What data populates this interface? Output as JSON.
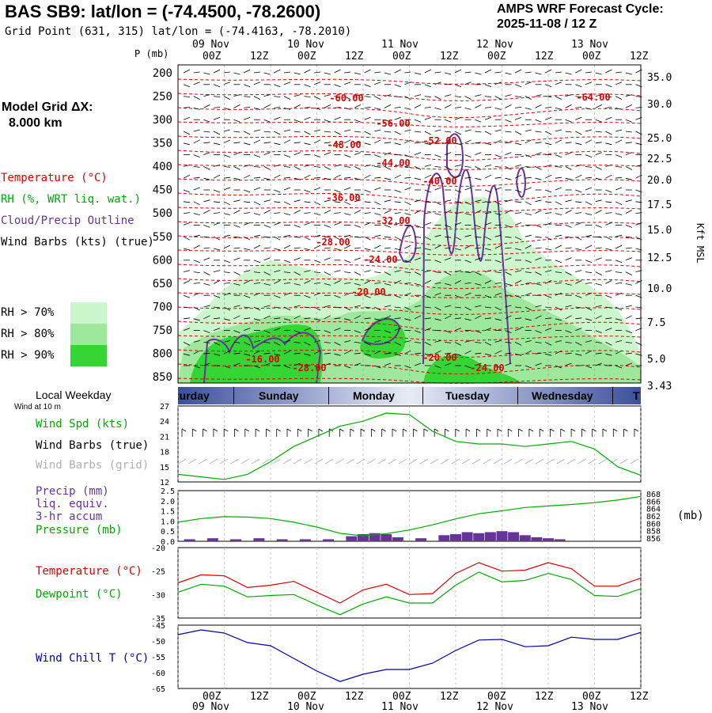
{
  "header": {
    "station_title": "BAS SB9:  lat/lon = (-74.4500, -78.2600)",
    "grid_point": "Grid Point (631, 315) lat/lon = (-74.4163, -78.2010)",
    "cycle_label": "AMPS WRF Forecast Cycle:",
    "cycle_value": "2025-11-08 / 12  Z"
  },
  "left_panel": {
    "model_grid_label": "Model Grid ΔX:",
    "model_grid_value": "8.000 km",
    "legend_temperature": "Temperature (°C)",
    "legend_rh": "RH (%, WRT liq. wat.)",
    "legend_cloud": "Cloud/Precip Outline",
    "legend_wind": "Wind Barbs (kts) (true)",
    "rh_levels": [
      {
        "label": "RH > 70%",
        "color": "#ccf7cc"
      },
      {
        "label": "RH > 80%",
        "color": "#9ee89e"
      },
      {
        "label": "RH > 90%",
        "color": "#33d633"
      }
    ],
    "local_weekday": "Local Weekday",
    "wind_at": "Wind at 10 m",
    "wind_spd_label": "Wind Spd (kts)",
    "wind_barbs_true": "Wind Barbs (true)",
    "wind_barbs_grid": "Wind Barbs (grid)",
    "precip_label_1": "Precip (mm)",
    "precip_label_2": "liq. equiv.",
    "precip_label_3": "3-hr accum",
    "pressure_label": "Pressure (mb)",
    "temp_label": "Temperature (°C)",
    "dewpoint_label": "Dewpoint (°C)",
    "windchill_label": "Wind Chill T (°C)"
  },
  "colors": {
    "temperature": "#dd0000",
    "rh_label": "#00aa00",
    "cloud": "#663399",
    "wind_spd": "#00aa00",
    "grid_barbs": "#b0b0b0",
    "precip": "#663399",
    "pressure": "#00aa00",
    "dewpoint": "#00aa00",
    "windchill": "#0000aa"
  },
  "time_axis": {
    "ticks": [
      "00Z",
      "12Z",
      "00Z",
      "12Z",
      "00Z",
      "12Z",
      "00Z",
      "12Z",
      "00Z",
      "12Z"
    ],
    "dates": [
      "09 Nov",
      "10 Nov",
      "11 Nov",
      "12 Nov",
      "13 Nov"
    ],
    "weekdays": [
      "turday",
      "Sunday",
      "Monday",
      "Tuesday",
      "Wednesday",
      "T"
    ]
  },
  "chart_data": [
    {
      "type": "heatmap",
      "name": "vertical cross-section",
      "y_label": "P (mb)",
      "right_label": "Kft MSL",
      "pressure_levels": [
        200,
        250,
        300,
        350,
        400,
        450,
        500,
        550,
        600,
        650,
        700,
        750,
        800,
        850
      ],
      "kft_levels": [
        "35.0",
        "30.0",
        "25.0",
        "22.5",
        "20.0",
        "17.5",
        "15.0",
        "12.5",
        "10.0",
        "7.5",
        "5.0",
        "3.43"
      ],
      "temperature_contour_labels": [
        "-60.00",
        "-64.00",
        "-56.00",
        "-52.00",
        "-48.00",
        "-44.00",
        "-40.00",
        "-36.00",
        "-32.00",
        "-28.00",
        "-24.00",
        "-20.00",
        "-16.00",
        "-28.00",
        "-20.00",
        "-24.00"
      ]
    },
    {
      "type": "line",
      "name": "wind speed",
      "ylabel": "Wind Spd (kts)",
      "yticks": [
        12,
        15,
        18,
        21,
        24,
        27
      ],
      "ylim": [
        12,
        27
      ],
      "x_hours": [
        0,
        6,
        12,
        18,
        24,
        30,
        36,
        42,
        48,
        54,
        60,
        66,
        72,
        78,
        84,
        90,
        96,
        102,
        108,
        114,
        120
      ],
      "values": [
        13.5,
        13,
        12.5,
        13.5,
        16,
        19,
        21,
        23,
        24,
        25.6,
        25.3,
        22,
        20,
        19.5,
        19.5,
        19,
        19.5,
        20,
        18.5,
        15,
        13.3
      ]
    },
    {
      "type": "bar",
      "name": "precip and pressure",
      "ylabel": "Precip (mm)",
      "yticks": [
        "0.0",
        "0.5",
        "1.0",
        "1.5",
        "2.0",
        "2.5"
      ],
      "ylim": [
        0,
        2.5
      ],
      "precip_hours": [
        3,
        9,
        15,
        21,
        27,
        33,
        39,
        45,
        48,
        51,
        54,
        57,
        63,
        69,
        72,
        75,
        78,
        81,
        84,
        87,
        90,
        93,
        96,
        99
      ],
      "precip_values": [
        0.1,
        0.15,
        0.1,
        0.15,
        0.1,
        0.1,
        0.1,
        0.25,
        0.35,
        0.4,
        0.35,
        0.2,
        0.15,
        0.3,
        0.35,
        0.45,
        0.4,
        0.45,
        0.5,
        0.45,
        0.3,
        0.2,
        0.15,
        0.1
      ],
      "pressure_ticks": [
        "868",
        "866",
        "864",
        "862",
        "860",
        "858",
        "856"
      ],
      "pressure_ylim": [
        856,
        868
      ],
      "pressure_unit": "(mb)",
      "pressure_hours": [
        0,
        6,
        12,
        18,
        24,
        30,
        36,
        42,
        48,
        54,
        60,
        66,
        72,
        78,
        84,
        90,
        96,
        102,
        108,
        114,
        120
      ],
      "pressure_values": [
        860.3,
        861.3,
        861.8,
        861.7,
        861.3,
        860.3,
        859.0,
        857.3,
        856.6,
        857.2,
        858.2,
        859.6,
        861.2,
        862.6,
        863.4,
        864.3,
        864.7,
        865.1,
        865.6,
        866.3,
        867.3
      ]
    },
    {
      "type": "line",
      "name": "temperature and dewpoint",
      "yticks": [
        -20,
        -25,
        -30,
        -35
      ],
      "ylim": [
        -35,
        -20
      ],
      "x_hours": [
        0,
        6,
        12,
        18,
        24,
        30,
        36,
        42,
        48,
        54,
        60,
        66,
        72,
        78,
        84,
        90,
        96,
        102,
        108,
        114,
        120
      ],
      "series": [
        {
          "name": "Temperature (°C)",
          "values": [
            -27.5,
            -25.8,
            -26,
            -28.5,
            -28,
            -27.2,
            -29.5,
            -31.8,
            -29,
            -27.8,
            -30,
            -29.8,
            -25.5,
            -23.2,
            -25,
            -24.8,
            -23.2,
            -24.5,
            -28.2,
            -28.2,
            -26.5
          ]
        },
        {
          "name": "Dewpoint (°C)",
          "values": [
            -29.5,
            -27.8,
            -28.2,
            -30.5,
            -30.2,
            -30,
            -32.2,
            -34.3,
            -32,
            -30.5,
            -31.8,
            -31.8,
            -28,
            -25.2,
            -27.3,
            -27,
            -25.5,
            -26.8,
            -30.2,
            -30.4,
            -28.8
          ]
        }
      ]
    },
    {
      "type": "line",
      "name": "wind chill",
      "ylabel": "Wind Chill T (°C)",
      "yticks": [
        -45,
        -50,
        -55,
        -60,
        -65
      ],
      "ylim": [
        -65,
        -45
      ],
      "x_hours": [
        0,
        6,
        12,
        18,
        24,
        30,
        36,
        42,
        48,
        54,
        60,
        66,
        72,
        78,
        84,
        90,
        96,
        102,
        108,
        114,
        120
      ],
      "values": [
        -48,
        -46.5,
        -47.5,
        -50.5,
        -51.5,
        -55.5,
        -59.5,
        -62.8,
        -60.5,
        -59,
        -59,
        -57,
        -53,
        -49.7,
        -49.5,
        -51.8,
        -51.5,
        -48.8,
        -49.5,
        -49.5,
        -47.3
      ]
    }
  ]
}
